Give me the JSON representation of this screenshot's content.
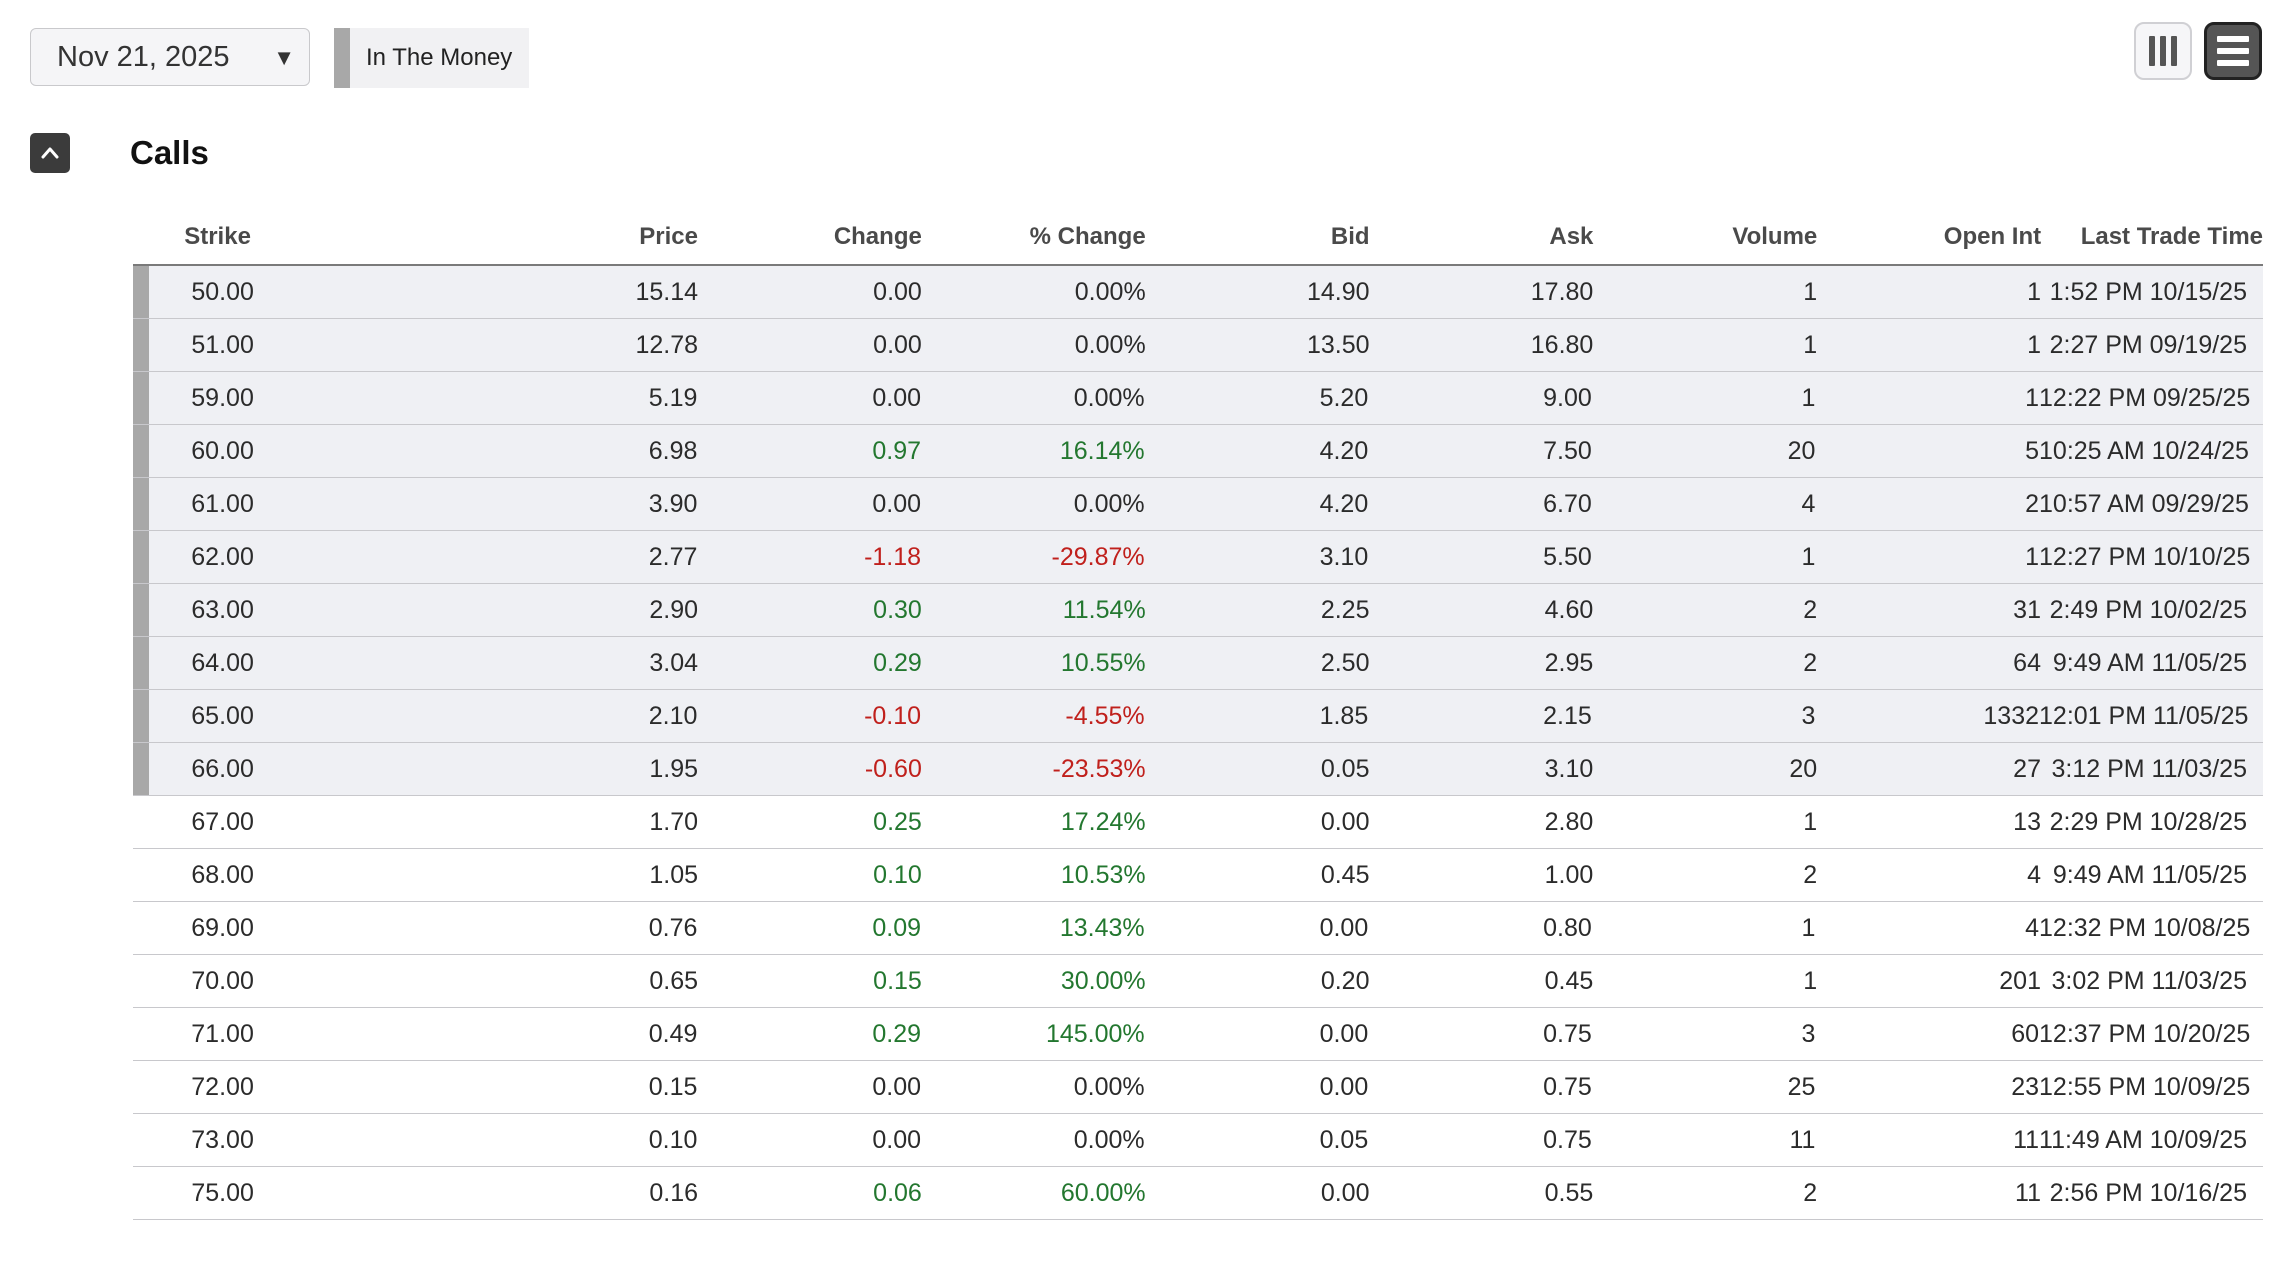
{
  "toolbar": {
    "expiration": "Nov 21, 2025",
    "legend_label": "In The Money",
    "legend_color": "#a8a8a8"
  },
  "section": {
    "title": "Calls"
  },
  "table": {
    "headers": [
      "Strike",
      "Price",
      "Change",
      "% Change",
      "Bid",
      "Ask",
      "Volume",
      "Open Int",
      "Last Trade Time"
    ],
    "rows": [
      {
        "itm": true,
        "cells": [
          "50.00",
          "15.14",
          "0.00",
          "0.00%",
          "14.90",
          "17.80",
          "1",
          "1",
          "1:52 PM 10/15/25"
        ],
        "dir": "flat"
      },
      {
        "itm": true,
        "cells": [
          "51.00",
          "12.78",
          "0.00",
          "0.00%",
          "13.50",
          "16.80",
          "1",
          "1",
          "2:27 PM 09/19/25"
        ],
        "dir": "flat"
      },
      {
        "itm": true,
        "cells": [
          "59.00",
          "5.19",
          "0.00",
          "0.00%",
          "5.20",
          "9.00",
          "1",
          "1",
          "12:22 PM 09/25/25"
        ],
        "dir": "flat"
      },
      {
        "itm": true,
        "cells": [
          "60.00",
          "6.98",
          "0.97",
          "16.14%",
          "4.20",
          "7.50",
          "20",
          "5",
          "10:25 AM 10/24/25"
        ],
        "dir": "pos"
      },
      {
        "itm": true,
        "cells": [
          "61.00",
          "3.90",
          "0.00",
          "0.00%",
          "4.20",
          "6.70",
          "4",
          "2",
          "10:57 AM 09/29/25"
        ],
        "dir": "flat"
      },
      {
        "itm": true,
        "cells": [
          "62.00",
          "2.77",
          "-1.18",
          "-29.87%",
          "3.10",
          "5.50",
          "1",
          "1",
          "12:27 PM 10/10/25"
        ],
        "dir": "neg"
      },
      {
        "itm": true,
        "cells": [
          "63.00",
          "2.90",
          "0.30",
          "11.54%",
          "2.25",
          "4.60",
          "2",
          "31",
          "2:49 PM 10/02/25"
        ],
        "dir": "pos"
      },
      {
        "itm": true,
        "cells": [
          "64.00",
          "3.04",
          "0.29",
          "10.55%",
          "2.50",
          "2.95",
          "2",
          "64",
          "9:49 AM 11/05/25"
        ],
        "dir": "pos"
      },
      {
        "itm": true,
        "cells": [
          "65.00",
          "2.10",
          "-0.10",
          "-4.55%",
          "1.85",
          "2.15",
          "3",
          "1332",
          "12:01 PM 11/05/25"
        ],
        "dir": "neg"
      },
      {
        "itm": true,
        "cells": [
          "66.00",
          "1.95",
          "-0.60",
          "-23.53%",
          "0.05",
          "3.10",
          "20",
          "27",
          "3:12 PM 11/03/25"
        ],
        "dir": "neg"
      },
      {
        "itm": false,
        "cells": [
          "67.00",
          "1.70",
          "0.25",
          "17.24%",
          "0.00",
          "2.80",
          "1",
          "13",
          "2:29 PM 10/28/25"
        ],
        "dir": "pos"
      },
      {
        "itm": false,
        "cells": [
          "68.00",
          "1.05",
          "0.10",
          "10.53%",
          "0.45",
          "1.00",
          "2",
          "4",
          "9:49 AM 11/05/25"
        ],
        "dir": "pos"
      },
      {
        "itm": false,
        "cells": [
          "69.00",
          "0.76",
          "0.09",
          "13.43%",
          "0.00",
          "0.80",
          "1",
          "4",
          "12:32 PM 10/08/25"
        ],
        "dir": "pos"
      },
      {
        "itm": false,
        "cells": [
          "70.00",
          "0.65",
          "0.15",
          "30.00%",
          "0.20",
          "0.45",
          "1",
          "201",
          "3:02 PM 11/03/25"
        ],
        "dir": "pos"
      },
      {
        "itm": false,
        "cells": [
          "71.00",
          "0.49",
          "0.29",
          "145.00%",
          "0.00",
          "0.75",
          "3",
          "60",
          "12:37 PM 10/20/25"
        ],
        "dir": "pos"
      },
      {
        "itm": false,
        "cells": [
          "72.00",
          "0.15",
          "0.00",
          "0.00%",
          "0.00",
          "0.75",
          "25",
          "23",
          "12:55 PM 10/09/25"
        ],
        "dir": "flat"
      },
      {
        "itm": false,
        "cells": [
          "73.00",
          "0.10",
          "0.00",
          "0.00%",
          "0.05",
          "0.75",
          "11",
          "11",
          "11:49 AM 10/09/25"
        ],
        "dir": "flat"
      },
      {
        "itm": false,
        "cells": [
          "75.00",
          "0.16",
          "0.06",
          "60.00%",
          "0.00",
          "0.55",
          "2",
          "11",
          "2:56 PM 10/16/25"
        ],
        "dir": "pos"
      }
    ]
  },
  "colors": {
    "positive": "#23772f",
    "negative": "#c0201c",
    "itm_row_bg": "#eff0f4"
  },
  "icons": {
    "collapse": "chevron-up-icon",
    "columns_view": "columns-icon",
    "list_view": "list-icon",
    "dropdown": "caret-down-icon"
  }
}
